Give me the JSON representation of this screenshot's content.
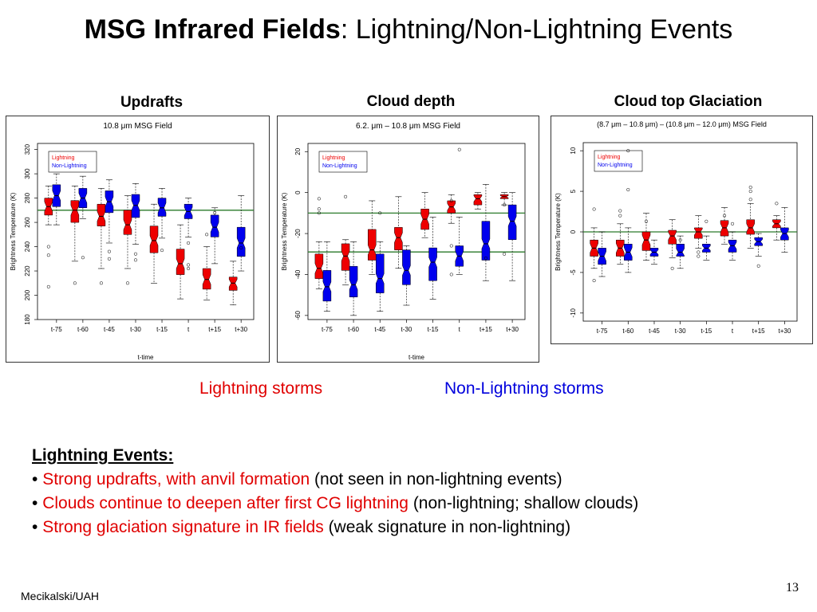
{
  "slide": {
    "title_bold": "MSG Infrared Fields",
    "title_rest": ": Lightning/Non-Lightning Events",
    "panel_labels": [
      "Updrafts",
      "Cloud depth",
      "Cloud top Glaciation"
    ],
    "lightning_storms": "Lightning storms",
    "nonlightning_storms": "Non-Lightning storms",
    "events_heading": "Lightning Events:",
    "bullets": [
      {
        "red": "Strong updrafts, with anvil formation",
        "black": " (not seen in non-lightning events)"
      },
      {
        "red": "Clouds continue to deepen after first CG lightning",
        "black": " (non-lightning; shallow clouds)"
      },
      {
        "red": "Strong glaciation signature in IR fields",
        "black": " (weak signature in non-lightning)"
      }
    ],
    "bullet_char": "•",
    "footer": "Mecikalski/UAH",
    "page_number": "13"
  },
  "colors": {
    "lightning": "#ee0000",
    "nonlightning": "#0000ee",
    "refline": "#2a7a2a"
  },
  "chart_data": [
    {
      "type": "boxplot",
      "title": "10.8 μm MSG Field",
      "xlabel": "t-time",
      "ylabel": "Brightness Temperature (K)",
      "categories": [
        "t-75",
        "t-60",
        "t-45",
        "t-30",
        "t-15",
        "t",
        "t+15",
        "t+30"
      ],
      "ylim": [
        180,
        325
      ],
      "yticks": [
        180,
        200,
        220,
        240,
        260,
        280,
        300,
        320
      ],
      "reflines": [
        270
      ],
      "legend": [
        "Lightning",
        "Non-Lightning"
      ],
      "series": [
        {
          "name": "Lightning",
          "boxes": [
            {
              "min": 258,
              "q1": 266,
              "med": 273,
              "q3": 280,
              "max": 290,
              "out": [
                240,
                233,
                207
              ]
            },
            {
              "min": 228,
              "q1": 260,
              "med": 270,
              "q3": 278,
              "max": 290,
              "out": [
                210
              ]
            },
            {
              "min": 222,
              "q1": 257,
              "med": 265,
              "q3": 275,
              "max": 288,
              "out": [
                210
              ]
            },
            {
              "min": 222,
              "q1": 250,
              "med": 258,
              "q3": 270,
              "max": 282,
              "out": [
                210
              ]
            },
            {
              "min": 210,
              "q1": 235,
              "med": 245,
              "q3": 257,
              "max": 275,
              "out": []
            },
            {
              "min": 197,
              "q1": 217,
              "med": 226,
              "q3": 238,
              "max": 258,
              "out": []
            },
            {
              "min": 196,
              "q1": 205,
              "med": 213,
              "q3": 222,
              "max": 240,
              "out": [
                250
              ]
            },
            {
              "min": 192,
              "q1": 204,
              "med": 210,
              "q3": 215,
              "max": 228,
              "out": []
            }
          ]
        },
        {
          "name": "Non-Lightning",
          "boxes": [
            {
              "min": 258,
              "q1": 273,
              "med": 282,
              "q3": 291,
              "max": 300,
              "out": []
            },
            {
              "min": 263,
              "q1": 272,
              "med": 280,
              "q3": 288,
              "max": 298,
              "out": [
                231
              ]
            },
            {
              "min": 243,
              "q1": 268,
              "med": 277,
              "q3": 286,
              "max": 295,
              "out": [
                236,
                230
              ]
            },
            {
              "min": 242,
              "q1": 264,
              "med": 274,
              "q3": 283,
              "max": 292,
              "out": [
                234,
                229
              ]
            },
            {
              "min": 247,
              "q1": 265,
              "med": 272,
              "q3": 280,
              "max": 288,
              "out": [
                237
              ]
            },
            {
              "min": 248,
              "q1": 263,
              "med": 269,
              "q3": 275,
              "max": 280,
              "out": [
                243,
                225,
                222
              ]
            },
            {
              "min": 226,
              "q1": 248,
              "med": 256,
              "q3": 266,
              "max": 272,
              "out": [
                268
              ]
            },
            {
              "min": 220,
              "q1": 232,
              "med": 243,
              "q3": 256,
              "max": 282,
              "out": [
                239
              ]
            }
          ]
        }
      ]
    },
    {
      "type": "boxplot",
      "title": "6.2. μm – 10.8 μm MSG Field",
      "xlabel": "t-time",
      "ylabel": "Brightness Temperature (K)",
      "categories": [
        "t-75",
        "t-60",
        "t-45",
        "t-30",
        "t-15",
        "t",
        "t+15",
        "t+30"
      ],
      "ylim": [
        -62,
        24
      ],
      "yticks": [
        -60,
        -40,
        -20,
        0,
        20
      ],
      "reflines": [
        -10,
        -29
      ],
      "legend": [
        "Lightning",
        "Non-Lightning"
      ],
      "series": [
        {
          "name": "Lightning",
          "boxes": [
            {
              "min": -47,
              "q1": -42,
              "med": -37,
              "q3": -30,
              "max": -24,
              "out": [
                -3,
                -8,
                -10
              ]
            },
            {
              "min": -45,
              "q1": -38,
              "med": -31,
              "q3": -25,
              "max": -23,
              "out": [
                -2
              ]
            },
            {
              "min": -40,
              "q1": -33,
              "med": -28,
              "q3": -18,
              "max": -4,
              "out": []
            },
            {
              "min": -37,
              "q1": -28,
              "med": -22,
              "q3": -17,
              "max": -2,
              "out": []
            },
            {
              "min": -22,
              "q1": -18,
              "med": -13,
              "q3": -8,
              "max": 0,
              "out": []
            },
            {
              "min": -15,
              "q1": -10,
              "med": -7,
              "q3": -4,
              "max": -1,
              "out": [
                -4,
                -26,
                -40
              ]
            },
            {
              "min": -8,
              "q1": -6,
              "med": -3,
              "q3": -1,
              "max": 0,
              "out": []
            },
            {
              "min": -6,
              "q1": -3,
              "med": -2,
              "q3": -1,
              "max": 0,
              "out": [
                -6,
                -30
              ]
            }
          ]
        },
        {
          "name": "Non-Lightning",
          "boxes": [
            {
              "min": -58,
              "q1": -53,
              "med": -46,
              "q3": -38,
              "max": -24,
              "out": []
            },
            {
              "min": -60,
              "q1": -51,
              "med": -45,
              "q3": -36,
              "max": -24,
              "out": []
            },
            {
              "min": -58,
              "q1": -49,
              "med": -42,
              "q3": -30,
              "max": -24,
              "out": [
                -10
              ]
            },
            {
              "min": -55,
              "q1": -45,
              "med": -38,
              "q3": -28,
              "max": -26,
              "out": []
            },
            {
              "min": -52,
              "q1": -43,
              "med": -34,
              "q3": -27,
              "max": -12,
              "out": []
            },
            {
              "min": -40,
              "q1": -36,
              "med": -31,
              "q3": -26,
              "max": -12,
              "out": [
                21
              ]
            },
            {
              "min": -43,
              "q1": -33,
              "med": -25,
              "q3": -14,
              "max": 4,
              "out": [
                -32
              ]
            },
            {
              "min": -43,
              "q1": -23,
              "med": -14,
              "q3": -6,
              "max": 0,
              "out": []
            }
          ]
        }
      ]
    },
    {
      "type": "boxplot",
      "title": "(8.7 μm – 10.8 μm) – (10.8 μm – 12.0 μm) MSG Field",
      "xlabel": "t-time",
      "ylabel": "Brightness Temperature (K)",
      "categories": [
        "t-75",
        "t-60",
        "t-45",
        "t-30",
        "t-15",
        "t",
        "t+15",
        "t+30"
      ],
      "ylim": [
        -11,
        11
      ],
      "yticks": [
        -10,
        -5,
        0,
        5,
        10
      ],
      "reflines": [
        0
      ],
      "legend": [
        "Lightning",
        "Non-Lightning"
      ],
      "series": [
        {
          "name": "Lightning",
          "boxes": [
            {
              "min": -4.5,
              "q1": -3.0,
              "med": -2.0,
              "q3": -1.0,
              "max": 0.5,
              "out": [
                2.8,
                -6.0
              ]
            },
            {
              "min": -4.0,
              "q1": -3.0,
              "med": -2.0,
              "q3": -1.0,
              "max": 1.0,
              "out": [
                2.0,
                2.6
              ]
            },
            {
              "min": -3.5,
              "q1": -2.3,
              "med": -1.0,
              "q3": 0.0,
              "max": 2.3,
              "out": [
                1.3
              ]
            },
            {
              "min": -3.2,
              "q1": -1.5,
              "med": -0.5,
              "q3": 0.2,
              "max": 1.5,
              "out": [
                -4.5
              ]
            },
            {
              "min": -2.0,
              "q1": -0.8,
              "med": 0.0,
              "q3": 0.5,
              "max": 2.0,
              "out": [
                -2.5,
                -3.0
              ]
            },
            {
              "min": -1.5,
              "q1": -0.5,
              "med": 0.5,
              "q3": 1.4,
              "max": 3.0,
              "out": [
                2.0
              ]
            },
            {
              "min": -2.0,
              "q1": -0.3,
              "med": 0.5,
              "q3": 1.5,
              "max": 3.5,
              "out": [
                5.5,
                5.0,
                4.0
              ]
            },
            {
              "min": -1.0,
              "q1": 0.5,
              "med": 1.0,
              "q3": 1.5,
              "max": 2.0,
              "out": [
                3.5
              ]
            }
          ]
        },
        {
          "name": "Non-Lightning",
          "boxes": [
            {
              "min": -5.5,
              "q1": -4.0,
              "med": -3.0,
              "q3": -2.0,
              "max": 0.0,
              "out": []
            },
            {
              "min": -5.0,
              "q1": -3.5,
              "med": -2.5,
              "q3": -1.5,
              "max": 0.5,
              "out": [
                5.2,
                10.0
              ]
            },
            {
              "min": -4.0,
              "q1": -3.0,
              "med": -2.5,
              "q3": -2.0,
              "max": -1.0,
              "out": []
            },
            {
              "min": -4.5,
              "q1": -3.0,
              "med": -2.5,
              "q3": -1.5,
              "max": -0.5,
              "out": [
                -1.0
              ]
            },
            {
              "min": -3.5,
              "q1": -2.5,
              "med": -2.0,
              "q3": -1.5,
              "max": -0.5,
              "out": [
                1.3
              ]
            },
            {
              "min": -3.5,
              "q1": -2.5,
              "med": -1.7,
              "q3": -1.0,
              "max": 0.0,
              "out": [
                1.0
              ]
            },
            {
              "min": -3.0,
              "q1": -1.7,
              "med": -1.2,
              "q3": -0.7,
              "max": -0.2,
              "out": [
                -4.2
              ]
            },
            {
              "min": -2.5,
              "q1": -1.0,
              "med": -0.2,
              "q3": 0.5,
              "max": 3.0,
              "out": []
            }
          ]
        }
      ]
    }
  ]
}
